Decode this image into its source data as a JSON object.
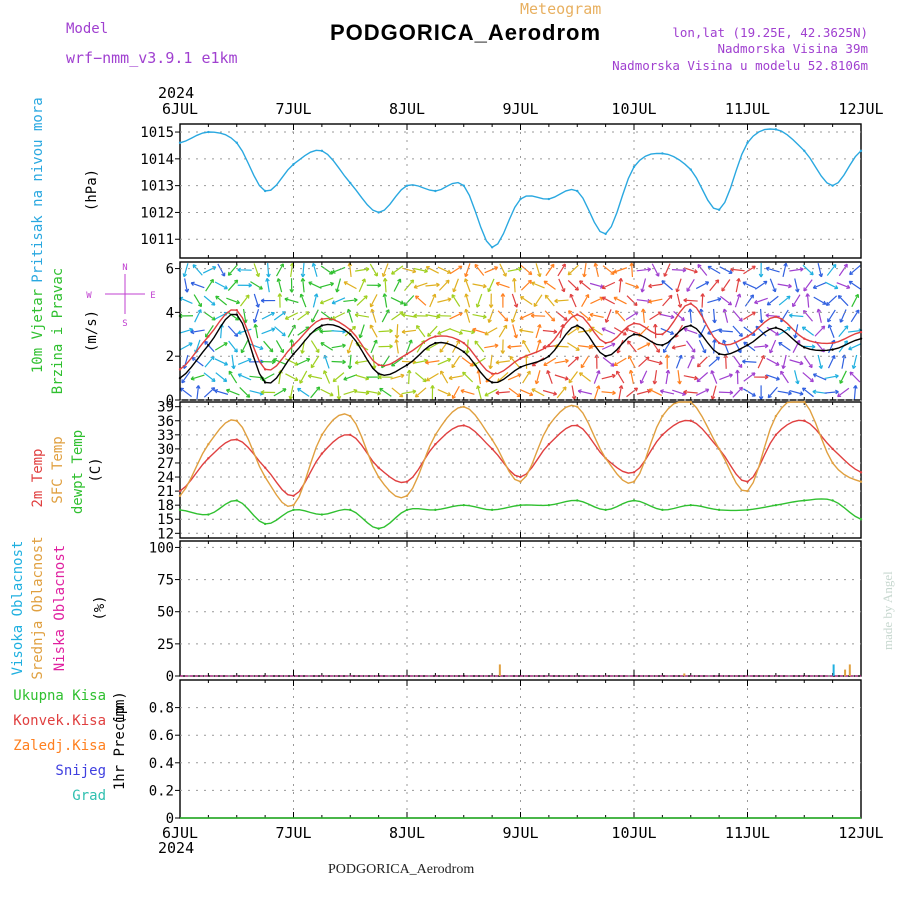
{
  "header": {
    "title": "PODGORICA_Aerodrom",
    "subtitle": "Meteogram",
    "model_label": "Model",
    "model_name": "wrf−nmm_v3.9.1 e1km",
    "lonlat": "lon,lat (19.25E, 42.3625N)",
    "elevation": "Nadmorska Visina 39m",
    "model_elevation": "Nadmorska Visina u modelu 52.8106m",
    "footer": "PODGORICA_Aerodrom",
    "credit": "made by Angel"
  },
  "colors": {
    "pressure": "#2aa8e0",
    "t2m": "#e04040",
    "sfc": "#e0a040",
    "dewpt": "#30c030",
    "wind_axis_label": "#30c030",
    "wind_sub_label": "#c040d0",
    "high_cloud": "#20b0e0",
    "mid_cloud": "#e0a040",
    "low_cloud": "#e020a0",
    "precip_total": "#30c030",
    "precip_convective": "#e04040",
    "precip_freezing": "#ff8020",
    "precip_snow": "#4040e0",
    "precip_hail": "#30c0b0"
  },
  "chart_data": [
    {
      "type": "line",
      "panel": "pressure",
      "ylabel": "Pritisak na nivou mora",
      "unit": "(hPa)",
      "ylim": [
        1010.3,
        1015.3
      ],
      "yticks": [
        1011,
        1012,
        1013,
        1014,
        1015
      ],
      "x": [
        "6JUL 00",
        "6JUL 06",
        "6JUL 12",
        "6JUL 18",
        "7JUL 00",
        "7JUL 06",
        "7JUL 12",
        "7JUL 18",
        "8JUL 00",
        "8JUL 06",
        "8JUL 12",
        "8JUL 18",
        "9JUL 00",
        "9JUL 06",
        "9JUL 12",
        "9JUL 18",
        "10JUL 00",
        "10JUL 06",
        "10JUL 12",
        "10JUL 18",
        "11JUL 00",
        "11JUL 06",
        "11JUL 12",
        "11JUL 18",
        "12JUL 00"
      ],
      "series": [
        {
          "values": [
            1014.6,
            1015.0,
            1014.6,
            1012.8,
            1013.8,
            1014.3,
            1013.1,
            1012.0,
            1013.0,
            1012.8,
            1013.0,
            1010.7,
            1012.5,
            1012.5,
            1012.8,
            1011.2,
            1013.7,
            1014.2,
            1013.6,
            1012.1,
            1014.6,
            1015.1,
            1014.3,
            1013.0,
            1014.3
          ]
        }
      ]
    },
    {
      "type": "line",
      "panel": "wind",
      "ylabel": "10m Vjetar",
      "ylabel2": "Brzina i Pravac",
      "unit": "(m/s)",
      "compass": [
        "N",
        "E",
        "S",
        "W"
      ],
      "ylim": [
        0,
        6.3
      ],
      "yticks": [
        0,
        2,
        4,
        6
      ],
      "x": [
        "6JUL 00",
        "6JUL 06",
        "6JUL 12",
        "6JUL 18",
        "7JUL 00",
        "7JUL 06",
        "7JUL 12",
        "7JUL 18",
        "8JUL 00",
        "8JUL 06",
        "8JUL 12",
        "8JUL 18",
        "9JUL 00",
        "9JUL 06",
        "9JUL 12",
        "9JUL 18",
        "10JUL 00",
        "10JUL 06",
        "10JUL 12",
        "10JUL 18",
        "11JUL 00",
        "11JUL 06",
        "11JUL 12",
        "11JUL 18",
        "12JUL 00"
      ],
      "series": [
        {
          "values": [
            1.0,
            2.5,
            3.9,
            0.8,
            2.1,
            3.4,
            3.0,
            1.2,
            1.6,
            2.6,
            2.2,
            0.8,
            1.5,
            2.0,
            3.4,
            2.0,
            3.0,
            2.5,
            3.4,
            2.1,
            2.5,
            3.3,
            2.4,
            2.3,
            2.8
          ]
        },
        {
          "values": [
            1.4,
            2.9,
            4.1,
            1.4,
            2.5,
            3.7,
            3.2,
            1.6,
            2.1,
            2.9,
            2.6,
            1.2,
            1.9,
            2.5,
            3.9,
            2.6,
            3.5,
            3.0,
            4.4,
            2.6,
            2.9,
            3.8,
            2.8,
            2.6,
            3.1
          ]
        }
      ]
    },
    {
      "type": "line",
      "panel": "temperature",
      "ylabel": "2m Temp",
      "ylabel2": "SFC Temp",
      "ylabel3": "dewpt Temp",
      "unit": "(C)",
      "ylim": [
        11,
        40
      ],
      "yticks": [
        12,
        15,
        18,
        21,
        24,
        27,
        30,
        33,
        36,
        39
      ],
      "x": [
        "6JUL 00",
        "6JUL 06",
        "6JUL 12",
        "6JUL 18",
        "7JUL 00",
        "7JUL 06",
        "7JUL 12",
        "7JUL 18",
        "8JUL 00",
        "8JUL 06",
        "8JUL 12",
        "8JUL 18",
        "9JUL 00",
        "9JUL 06",
        "9JUL 12",
        "9JUL 18",
        "10JUL 00",
        "10JUL 06",
        "10JUL 12",
        "10JUL 18",
        "11JUL 00",
        "11JUL 06",
        "11JUL 12",
        "11JUL 18",
        "12JUL 00"
      ],
      "series": [
        {
          "values": [
            21,
            28,
            32,
            26,
            20,
            29,
            33,
            26,
            23,
            31,
            35,
            30,
            24,
            31,
            35,
            28,
            25,
            33,
            36,
            30,
            23,
            33,
            36,
            30,
            25
          ]
        },
        {
          "values": [
            20,
            31,
            36,
            24,
            18,
            33,
            37,
            24,
            20,
            33,
            39,
            32,
            23,
            35,
            39,
            28,
            23,
            37,
            40,
            30,
            21,
            37,
            40,
            27,
            23
          ]
        },
        {
          "values": [
            17,
            16,
            19,
            14,
            17,
            16,
            17,
            13,
            17,
            17,
            18,
            17,
            18,
            18,
            19,
            17,
            19,
            17,
            18,
            17,
            17,
            18,
            19,
            19,
            15
          ]
        }
      ]
    },
    {
      "type": "bar",
      "panel": "cloud",
      "ylabel": "Visoka Oblacnost",
      "ylabel2": "Srednja Oblacnost",
      "ylabel3": "Niska Oblacnost",
      "unit": "(%)",
      "ylim": [
        0,
        105
      ],
      "yticks": [
        0,
        25,
        50,
        75,
        100
      ],
      "x": [
        "8JUL 19",
        "10JUL 10",
        "11JUL 18",
        "11JUL 20",
        "11JUL 21"
      ],
      "series": [
        {
          "name": "Visoka Oblacnost",
          "values": [
            0,
            0,
            9,
            0,
            0
          ]
        },
        {
          "name": "Srednja Oblacnost",
          "values": [
            9,
            2,
            0,
            5,
            9
          ]
        },
        {
          "name": "Niska Oblacnost",
          "values": [
            0,
            0,
            0,
            0,
            0
          ]
        }
      ]
    },
    {
      "type": "line",
      "panel": "precip",
      "ylabel": "1hr Precip",
      "unit": "(mm)",
      "ylim": [
        0,
        1.0
      ],
      "yticks": [
        0,
        0.2,
        0.4,
        0.6,
        0.8
      ],
      "x": [
        "6JUL 00",
        "12JUL 00"
      ],
      "series": [
        {
          "name": "Ukupna Kisa",
          "values": [
            0,
            0
          ]
        },
        {
          "name": "Konvek.Kisa",
          "values": [
            0,
            0
          ]
        },
        {
          "name": "Zaledj.Kisa",
          "values": [
            0,
            0
          ]
        },
        {
          "name": "Snijeg",
          "values": [
            0,
            0
          ]
        },
        {
          "name": "Grad",
          "values": [
            0,
            0
          ]
        }
      ]
    }
  ],
  "xaxis": {
    "year_top": "2024",
    "year_bottom": "2024",
    "days": [
      "6JUL",
      "7JUL",
      "8JUL",
      "9JUL",
      "10JUL",
      "11JUL",
      "12JUL"
    ]
  }
}
